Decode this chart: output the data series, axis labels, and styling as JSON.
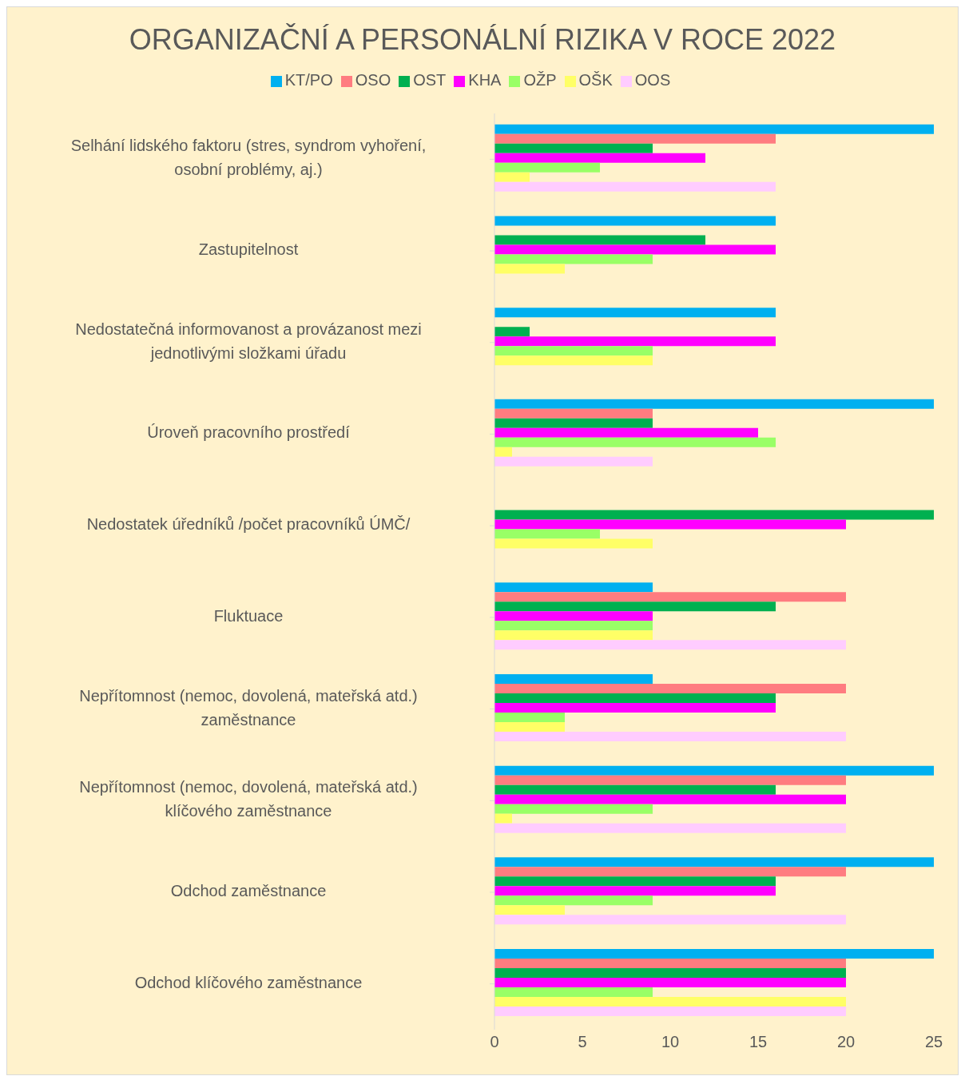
{
  "chart_data": {
    "type": "bar",
    "orientation": "horizontal",
    "title": "ORGANIZAČNÍ A PERSONÁLNÍ RIZIKA V ROCE 2022",
    "categories": [
      "Selhání lidského faktoru (stres, syndrom vyhoření, osobní problémy, aj.)",
      "Zastupitelnost",
      "Nedostatečná informovanost a provázanost mezi jednotlivými složkami úřadu",
      "Úroveň pracovního prostředí",
      "Nedostatek úředníků /počet pracovníků ÚMČ/",
      "Fluktuace",
      "Nepřítomnost (nemoc, dovolená, mateřská atd.) zaměstnance",
      "Nepřítomnost (nemoc, dovolená, mateřská atd.) klíčového zaměstnance",
      "Odchod zaměstnance",
      "Odchod klíčového zaměstnance"
    ],
    "series": [
      {
        "name": "KT/PO",
        "color": "#00b0f0",
        "values": [
          25,
          16,
          16,
          25,
          null,
          9,
          9,
          25,
          25,
          25
        ]
      },
      {
        "name": "OSO",
        "color": "#ff7c80",
        "values": [
          16,
          null,
          null,
          9,
          null,
          20,
          20,
          20,
          20,
          20
        ]
      },
      {
        "name": "OST",
        "color": "#00b050",
        "values": [
          9,
          12,
          2,
          9,
          25,
          16,
          16,
          16,
          16,
          20
        ]
      },
      {
        "name": "KHA",
        "color": "#ff00ff",
        "values": [
          12,
          16,
          16,
          15,
          20,
          9,
          16,
          20,
          16,
          20
        ]
      },
      {
        "name": "OŽP",
        "color": "#99ff66",
        "values": [
          6,
          9,
          9,
          16,
          6,
          9,
          4,
          9,
          9,
          9
        ]
      },
      {
        "name": "OŠK",
        "color": "#ffff66",
        "values": [
          2,
          4,
          9,
          1,
          9,
          9,
          4,
          1,
          4,
          20
        ]
      },
      {
        "name": "OOS",
        "color": "#ffccff",
        "values": [
          16,
          null,
          null,
          9,
          null,
          20,
          20,
          20,
          20,
          20
        ]
      }
    ],
    "xlim": [
      0,
      25
    ],
    "xticks": [
      0,
      5,
      10,
      15,
      20,
      25
    ],
    "grid": false,
    "legend": "top"
  }
}
